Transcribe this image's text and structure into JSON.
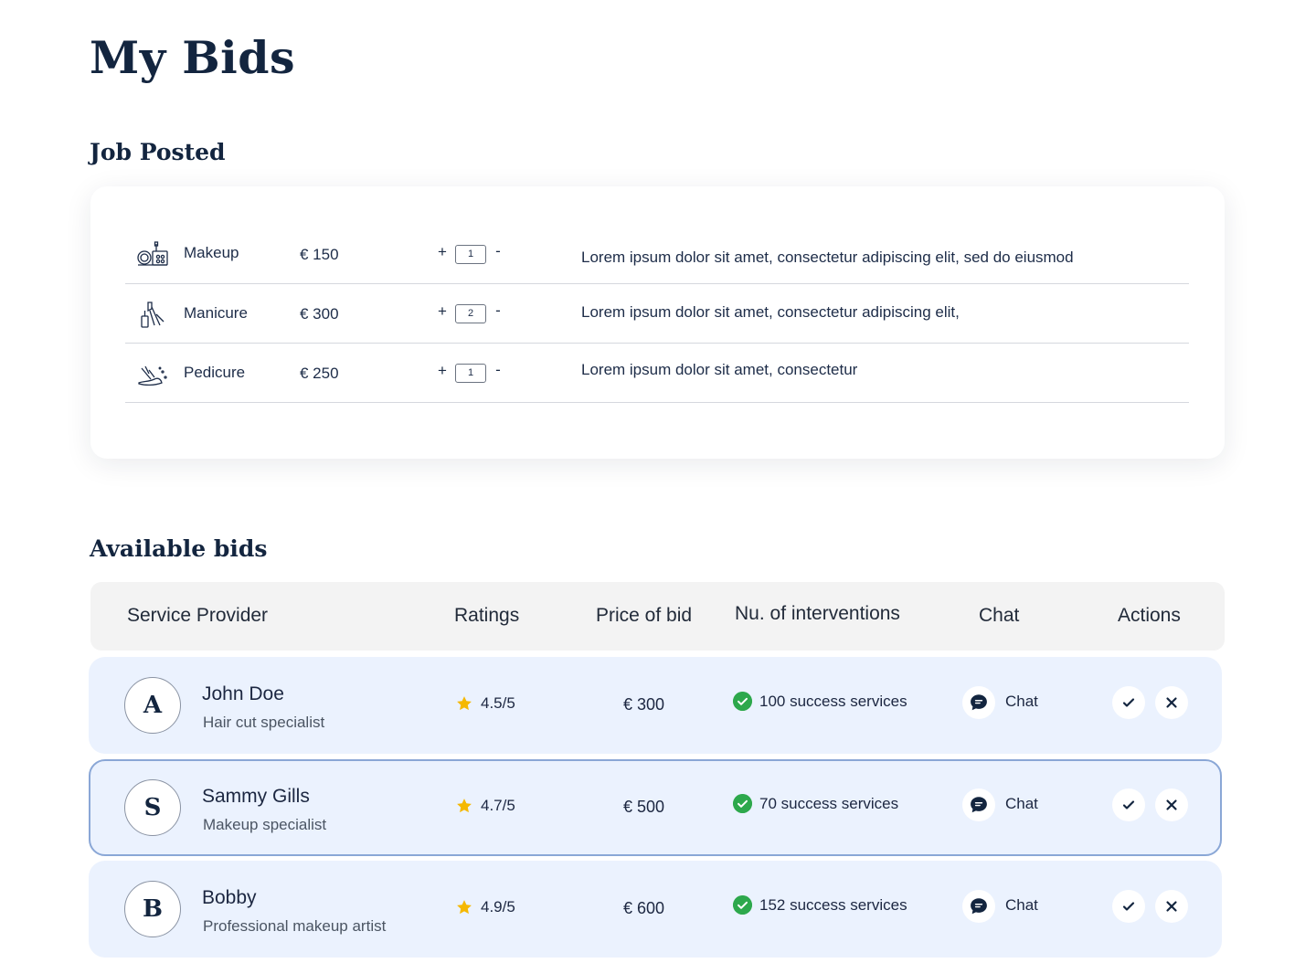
{
  "page": {
    "title": "My Bids"
  },
  "job_posted": {
    "title": "Job Posted",
    "services": [
      {
        "icon": "makeup-icon",
        "name": "Makeup",
        "price": "€ 150",
        "plus": "+",
        "quantity": "1",
        "minus": "-",
        "description": "Lorem ipsum dolor sit amet, consectetur adipiscing elit, sed do eiusmod"
      },
      {
        "icon": "manicure-icon",
        "name": "Manicure",
        "price": "€ 300",
        "plus": "+",
        "quantity": "2",
        "minus": "-",
        "description": "Lorem ipsum dolor sit amet, consectetur adipiscing elit,"
      },
      {
        "icon": "pedicure-icon",
        "name": "Pedicure",
        "price": "€ 250",
        "plus": "+",
        "quantity": "1",
        "minus": "-",
        "description": "Lorem ipsum dolor sit amet, consectetur"
      }
    ]
  },
  "available_bids": {
    "title": "Available bids",
    "columns": {
      "provider": "Service Provider",
      "ratings": "Ratings",
      "price": "Price of bid",
      "interventions": "Nu. of interventions",
      "chat": "Chat",
      "actions": "Actions"
    },
    "rows": [
      {
        "initial": "A",
        "name": "John Doe",
        "role": "Hair cut specialist",
        "rating": "4.5/5",
        "price": "€ 300",
        "interventions": "100 success services",
        "chat": "Chat",
        "selected": false
      },
      {
        "initial": "S",
        "name": "Sammy Gills",
        "role": "Makeup specialist",
        "rating": "4.7/5",
        "price": "€ 500",
        "interventions": "70 success services",
        "chat": "Chat",
        "selected": true
      },
      {
        "initial": "B",
        "name": "Bobby",
        "role": "Professional makeup artist",
        "rating": "4.9/5",
        "price": "€ 600",
        "interventions": "152 success services",
        "chat": "Chat",
        "selected": false
      }
    ]
  },
  "colors": {
    "heading": "#13253f",
    "bid_row_bg": "#ebf2fe",
    "selected_border": "#8aa7d6",
    "success_green": "#2da84c",
    "star": "#f5b800",
    "header_bg": "#f3f3f3"
  }
}
